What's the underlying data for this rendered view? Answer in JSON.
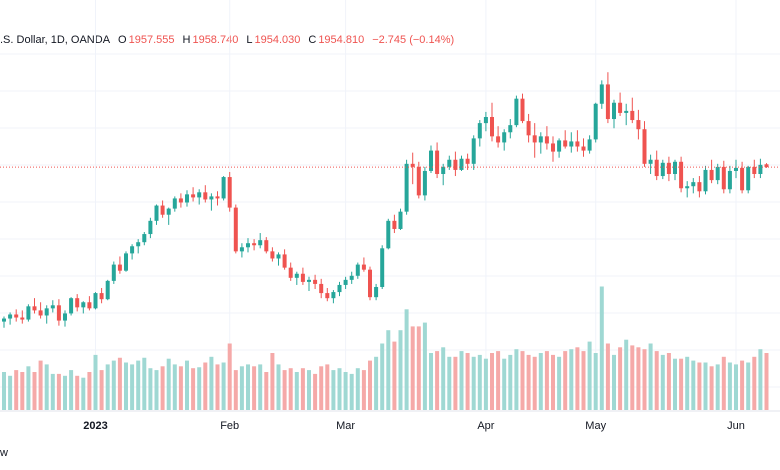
{
  "legend": {
    "symbol": ".S. Dollar, 1D, OANDA",
    "open_label": "O",
    "open_value": "1957.555",
    "high_label": "H",
    "high_value": "1958.740",
    "low_label": "L",
    "low_value": "1954.030",
    "close_label": "C",
    "close_value": "1954.810",
    "change": "−2.745 (−0.14%)"
  },
  "footer_text": "w",
  "colors": {
    "up": "#26a69a",
    "down": "#ef5350",
    "up_volume": "#9fd8d3",
    "down_volume": "#f5a9a8",
    "grid": "#f0f3fa",
    "price_line": "#ef5350"
  },
  "chart_data": {
    "type": "candlestick",
    "x_ticks": [
      {
        "label": "2023",
        "index": 15,
        "bold": true
      },
      {
        "label": "Feb",
        "index": 37,
        "bold": false
      },
      {
        "label": "Mar",
        "index": 56,
        "bold": false
      },
      {
        "label": "Apr",
        "index": 79,
        "bold": false
      },
      {
        "label": "May",
        "index": 97,
        "bold": false
      },
      {
        "label": "Jun",
        "index": 120,
        "bold": false
      }
    ],
    "y_range": [
      1780,
      2060
    ],
    "last_close": 1954.81,
    "grid": true,
    "series": [
      {
        "name": "price",
        "ohlc": [
          [
            1803,
            1808,
            1797,
            1806
          ],
          [
            1806,
            1812,
            1800,
            1810
          ],
          [
            1810,
            1815,
            1803,
            1807
          ],
          [
            1807,
            1814,
            1801,
            1805
          ],
          [
            1805,
            1820,
            1803,
            1818
          ],
          [
            1818,
            1826,
            1811,
            1814
          ],
          [
            1814,
            1822,
            1806,
            1809
          ],
          [
            1809,
            1819,
            1801,
            1816
          ],
          [
            1816,
            1824,
            1812,
            1819
          ],
          [
            1819,
            1825,
            1799,
            1804
          ],
          [
            1804,
            1814,
            1798,
            1811
          ],
          [
            1811,
            1827,
            1809,
            1826
          ],
          [
            1826,
            1830,
            1813,
            1817
          ],
          [
            1817,
            1823,
            1811,
            1822
          ],
          [
            1822,
            1828,
            1814,
            1816
          ],
          [
            1816,
            1832,
            1815,
            1831
          ],
          [
            1831,
            1836,
            1821,
            1825
          ],
          [
            1825,
            1844,
            1824,
            1843
          ],
          [
            1843,
            1862,
            1840,
            1859
          ],
          [
            1859,
            1867,
            1850,
            1853
          ],
          [
            1853,
            1872,
            1852,
            1870
          ],
          [
            1870,
            1879,
            1864,
            1877
          ],
          [
            1877,
            1884,
            1870,
            1881
          ],
          [
            1881,
            1891,
            1878,
            1889
          ],
          [
            1889,
            1905,
            1885,
            1902
          ],
          [
            1902,
            1918,
            1898,
            1917
          ],
          [
            1917,
            1922,
            1905,
            1908
          ],
          [
            1908,
            1915,
            1898,
            1914
          ],
          [
            1914,
            1926,
            1911,
            1924
          ],
          [
            1924,
            1929,
            1915,
            1920
          ],
          [
            1920,
            1932,
            1916,
            1928
          ],
          [
            1928,
            1935,
            1921,
            1925
          ],
          [
            1925,
            1933,
            1918,
            1930
          ],
          [
            1930,
            1937,
            1920,
            1923
          ],
          [
            1923,
            1929,
            1912,
            1926
          ],
          [
            1926,
            1931,
            1917,
            1924
          ],
          [
            1924,
            1946,
            1922,
            1945
          ],
          [
            1945,
            1950,
            1911,
            1915
          ],
          [
            1915,
            1918,
            1870,
            1872
          ],
          [
            1872,
            1880,
            1866,
            1876
          ],
          [
            1876,
            1885,
            1871,
            1880
          ],
          [
            1880,
            1884,
            1873,
            1878
          ],
          [
            1878,
            1890,
            1875,
            1883
          ],
          [
            1883,
            1886,
            1870,
            1872
          ],
          [
            1872,
            1876,
            1862,
            1865
          ],
          [
            1865,
            1871,
            1858,
            1869
          ],
          [
            1869,
            1874,
            1854,
            1856
          ],
          [
            1856,
            1861,
            1843,
            1846
          ],
          [
            1846,
            1852,
            1839,
            1850
          ],
          [
            1850,
            1856,
            1839,
            1842
          ],
          [
            1842,
            1847,
            1833,
            1844
          ],
          [
            1844,
            1849,
            1835,
            1840
          ],
          [
            1840,
            1845,
            1826,
            1831
          ],
          [
            1831,
            1836,
            1823,
            1826
          ],
          [
            1826,
            1834,
            1821,
            1832
          ],
          [
            1832,
            1842,
            1828,
            1839
          ],
          [
            1839,
            1847,
            1835,
            1844
          ],
          [
            1844,
            1852,
            1840,
            1848
          ],
          [
            1848,
            1861,
            1845,
            1859
          ],
          [
            1859,
            1866,
            1852,
            1854
          ],
          [
            1854,
            1857,
            1824,
            1827
          ],
          [
            1827,
            1840,
            1824,
            1837
          ],
          [
            1837,
            1878,
            1835,
            1875
          ],
          [
            1875,
            1904,
            1874,
            1902
          ],
          [
            1902,
            1908,
            1890,
            1894
          ],
          [
            1894,
            1914,
            1893,
            1911
          ],
          [
            1911,
            1962,
            1908,
            1958
          ],
          [
            1958,
            1969,
            1938,
            1955
          ],
          [
            1955,
            1960,
            1924,
            1927
          ],
          [
            1927,
            1955,
            1922,
            1951
          ],
          [
            1951,
            1976,
            1949,
            1971
          ],
          [
            1971,
            1979,
            1944,
            1948
          ],
          [
            1948,
            1958,
            1937,
            1955
          ],
          [
            1955,
            1966,
            1952,
            1962
          ],
          [
            1962,
            1970,
            1946,
            1952
          ],
          [
            1952,
            1966,
            1951,
            1963
          ],
          [
            1963,
            1968,
            1952,
            1958
          ],
          [
            1958,
            1986,
            1952,
            1983
          ],
          [
            1983,
            2001,
            1975,
            1998
          ],
          [
            1998,
            2009,
            1990,
            2004
          ],
          [
            2004,
            2018,
            1980,
            1985
          ],
          [
            1985,
            1995,
            1974,
            1979
          ],
          [
            1979,
            1992,
            1971,
            1989
          ],
          [
            1989,
            2002,
            1983,
            1996
          ],
          [
            1996,
            2025,
            1994,
            2022
          ],
          [
            2022,
            2027,
            1998,
            2000
          ],
          [
            2000,
            2007,
            1979,
            1986
          ],
          [
            1986,
            1998,
            1964,
            1979
          ],
          [
            1979,
            1989,
            1968,
            1985
          ],
          [
            1985,
            1995,
            1972,
            1978
          ],
          [
            1978,
            1985,
            1960,
            1970
          ],
          [
            1970,
            1983,
            1964,
            1981
          ],
          [
            1981,
            1991,
            1973,
            1975
          ],
          [
            1975,
            1989,
            1969,
            1980
          ],
          [
            1980,
            1991,
            1970,
            1975
          ],
          [
            1975,
            1983,
            1965,
            1971
          ],
          [
            1971,
            1986,
            1968,
            1982
          ],
          [
            1982,
            2018,
            1979,
            2017
          ],
          [
            2017,
            2040,
            2012,
            2036
          ],
          [
            2036,
            2048,
            1998,
            2002
          ],
          [
            2002,
            2021,
            1993,
            2018
          ],
          [
            2018,
            2028,
            2005,
            2008
          ],
          [
            2008,
            2017,
            1996,
            2010
          ],
          [
            2010,
            2023,
            1998,
            2001
          ],
          [
            2001,
            2011,
            1982,
            1992
          ],
          [
            1992,
            2000,
            1955,
            1958
          ],
          [
            1958,
            1967,
            1948,
            1962
          ],
          [
            1962,
            1971,
            1942,
            1946
          ],
          [
            1946,
            1962,
            1943,
            1959
          ],
          [
            1959,
            1965,
            1941,
            1948
          ],
          [
            1948,
            1962,
            1942,
            1960
          ],
          [
            1960,
            1965,
            1930,
            1934
          ],
          [
            1934,
            1941,
            1925,
            1936
          ],
          [
            1936,
            1944,
            1929,
            1940
          ],
          [
            1940,
            1946,
            1925,
            1931
          ],
          [
            1931,
            1956,
            1928,
            1952
          ],
          [
            1952,
            1962,
            1939,
            1942
          ],
          [
            1942,
            1958,
            1938,
            1955
          ],
          [
            1955,
            1961,
            1929,
            1933
          ],
          [
            1933,
            1956,
            1929,
            1951
          ],
          [
            1951,
            1962,
            1944,
            1954
          ],
          [
            1954,
            1960,
            1929,
            1932
          ],
          [
            1932,
            1956,
            1929,
            1955
          ],
          [
            1955,
            1962,
            1944,
            1948
          ],
          [
            1948,
            1963,
            1944,
            1957
          ],
          [
            1957.555,
            1958.74,
            1954.03,
            1954.81
          ]
        ]
      },
      {
        "name": "volume",
        "values": [
          40,
          36,
          42,
          40,
          46,
          40,
          52,
          48,
          38,
          38,
          36,
          42,
          36,
          34,
          40,
          58,
          42,
          48,
          52,
          55,
          50,
          48,
          52,
          55,
          44,
          42,
          46,
          54,
          48,
          46,
          52,
          44,
          45,
          50,
          56,
          48,
          50,
          70,
          42,
          46,
          48,
          46,
          48,
          40,
          60,
          48,
          42,
          44,
          40,
          44,
          42,
          38,
          46,
          48,
          42,
          44,
          40,
          38,
          44,
          42,
          52,
          56,
          70,
          84,
          72,
          84,
          106,
          88,
          88,
          92,
          60,
          62,
          66,
          56,
          56,
          62,
          60,
          56,
          58,
          54,
          60,
          62,
          54,
          58,
          64,
          62,
          58,
          56,
          60,
          62,
          58,
          56,
          62,
          64,
          66,
          62,
          72,
          60,
          130,
          70,
          58,
          66,
          74,
          68,
          66,
          64,
          70,
          62,
          58,
          60,
          54,
          54,
          56,
          52,
          50,
          50,
          46,
          48,
          56,
          50,
          48,
          52,
          50,
          56,
          64,
          60
        ]
      }
    ]
  }
}
